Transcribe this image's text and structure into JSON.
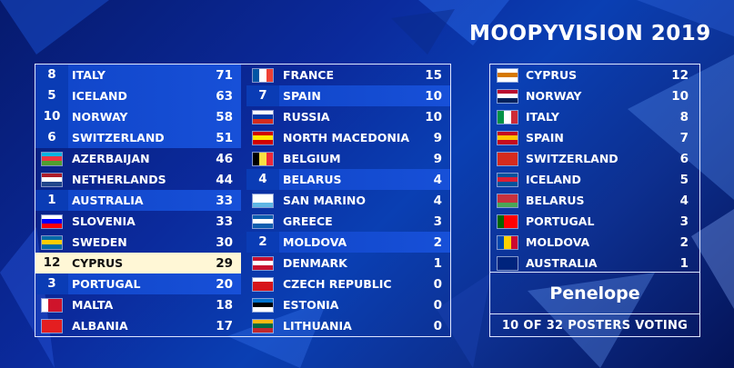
{
  "title": "MOOPYVISION 2019",
  "left_column": [
    {
      "badge": "8",
      "country": "ITALY",
      "points": "71",
      "style": "hl",
      "flag": [
        "#009246",
        "#ffffff",
        "#ce2b37"
      ],
      "flag_dir": "v"
    },
    {
      "badge": "5",
      "country": "ICELAND",
      "points": "63",
      "style": "hl",
      "flag": [
        "#02529c",
        "#ffffff",
        "#02529c"
      ],
      "flag_dir": "h"
    },
    {
      "badge": "10",
      "country": "NORWAY",
      "points": "58",
      "style": "hl",
      "flag": [
        "#ba0c2f",
        "#ffffff",
        "#00205b"
      ],
      "flag_dir": "h"
    },
    {
      "badge": "6",
      "country": "SWITZERLAND",
      "points": "51",
      "style": "hl",
      "flag": [
        "#d52b1e",
        "#d52b1e",
        "#d52b1e"
      ],
      "flag_dir": "h"
    },
    {
      "badge": "",
      "country": "AZERBAIJAN",
      "points": "46",
      "style": "",
      "flag": [
        "#00b5e2",
        "#ef3340",
        "#509e2f"
      ],
      "flag_dir": "h"
    },
    {
      "badge": "",
      "country": "NETHERLANDS",
      "points": "44",
      "style": "",
      "flag": [
        "#ae1c28",
        "#ffffff",
        "#21468b"
      ],
      "flag_dir": "h"
    },
    {
      "badge": "1",
      "country": "AUSTRALIA",
      "points": "33",
      "style": "hl",
      "flag": [
        "#00247d",
        "#00247d",
        "#00247d"
      ],
      "flag_dir": "h"
    },
    {
      "badge": "",
      "country": "SLOVENIA",
      "points": "33",
      "style": "",
      "flag": [
        "#ffffff",
        "#0000ff",
        "#ff0000"
      ],
      "flag_dir": "h"
    },
    {
      "badge": "",
      "country": "SWEDEN",
      "points": "30",
      "style": "",
      "flag": [
        "#006aa7",
        "#fecc00",
        "#006aa7"
      ],
      "flag_dir": "h"
    },
    {
      "badge": "12",
      "country": "CYPRUS",
      "points": "29",
      "style": "top",
      "flag": [
        "#ffffff",
        "#d57800",
        "#ffffff"
      ],
      "flag_dir": "h"
    },
    {
      "badge": "3",
      "country": "PORTUGAL",
      "points": "20",
      "style": "hl",
      "flag": [
        "#006600",
        "#ff0000",
        "#ff0000"
      ],
      "flag_dir": "v"
    },
    {
      "badge": "",
      "country": "MALTA",
      "points": "18",
      "style": "",
      "flag": [
        "#ffffff",
        "#cf142b",
        "#cf142b"
      ],
      "flag_dir": "v"
    },
    {
      "badge": "",
      "country": "ALBANIA",
      "points": "17",
      "style": "",
      "flag": [
        "#e41e20",
        "#e41e20",
        "#e41e20"
      ],
      "flag_dir": "h"
    }
  ],
  "middle_column": [
    {
      "badge": "",
      "country": "FRANCE",
      "points": "15",
      "style": "",
      "flag": [
        "#0055a4",
        "#ffffff",
        "#ef4135"
      ],
      "flag_dir": "v"
    },
    {
      "badge": "7",
      "country": "SPAIN",
      "points": "10",
      "style": "hl",
      "flag": [
        "#c60b1e",
        "#ffc400",
        "#c60b1e"
      ],
      "flag_dir": "h"
    },
    {
      "badge": "",
      "country": "RUSSIA",
      "points": "10",
      "style": "",
      "flag": [
        "#ffffff",
        "#0039a6",
        "#d52b1e"
      ],
      "flag_dir": "h"
    },
    {
      "badge": "",
      "country": "NORTH MACEDONIA",
      "points": "9",
      "style": "",
      "flag": [
        "#d20000",
        "#ffe600",
        "#d20000"
      ],
      "flag_dir": "h"
    },
    {
      "badge": "",
      "country": "BELGIUM",
      "points": "9",
      "style": "",
      "flag": [
        "#000000",
        "#fae042",
        "#ed2939"
      ],
      "flag_dir": "v"
    },
    {
      "badge": "4",
      "country": "BELARUS",
      "points": "4",
      "style": "hl",
      "flag": [
        "#c8313e",
        "#c8313e",
        "#4aa657"
      ],
      "flag_dir": "h"
    },
    {
      "badge": "",
      "country": "SAN MARINO",
      "points": "4",
      "style": "",
      "flag": [
        "#ffffff",
        "#ffffff",
        "#5eb6e4"
      ],
      "flag_dir": "h"
    },
    {
      "badge": "",
      "country": "GREECE",
      "points": "3",
      "style": "",
      "flag": [
        "#0d5eaf",
        "#ffffff",
        "#0d5eaf"
      ],
      "flag_dir": "h"
    },
    {
      "badge": "2",
      "country": "MOLDOVA",
      "points": "2",
      "style": "hl",
      "flag": [
        "#0046ae",
        "#ffd200",
        "#cc092f"
      ],
      "flag_dir": "v"
    },
    {
      "badge": "",
      "country": "DENMARK",
      "points": "1",
      "style": "",
      "flag": [
        "#c8102e",
        "#ffffff",
        "#c8102e"
      ],
      "flag_dir": "h"
    },
    {
      "badge": "",
      "country": "CZECH REPUBLIC",
      "points": "0",
      "style": "",
      "flag": [
        "#ffffff",
        "#d7141a",
        "#d7141a"
      ],
      "flag_dir": "h"
    },
    {
      "badge": "",
      "country": "ESTONIA",
      "points": "0",
      "style": "",
      "flag": [
        "#0072ce",
        "#000000",
        "#ffffff"
      ],
      "flag_dir": "h"
    },
    {
      "badge": "",
      "country": "LITHUANIA",
      "points": "0",
      "style": "",
      "flag": [
        "#fdb913",
        "#006a44",
        "#c1272d"
      ],
      "flag_dir": "h"
    }
  ],
  "right_column": [
    {
      "country": "CYPRUS",
      "points": "12",
      "flag": [
        "#ffffff",
        "#d57800",
        "#ffffff"
      ],
      "flag_dir": "h"
    },
    {
      "country": "NORWAY",
      "points": "10",
      "flag": [
        "#ba0c2f",
        "#ffffff",
        "#00205b"
      ],
      "flag_dir": "h"
    },
    {
      "country": "ITALY",
      "points": "8",
      "flag": [
        "#009246",
        "#ffffff",
        "#ce2b37"
      ],
      "flag_dir": "v"
    },
    {
      "country": "SPAIN",
      "points": "7",
      "flag": [
        "#c60b1e",
        "#ffc400",
        "#c60b1e"
      ],
      "flag_dir": "h"
    },
    {
      "country": "SWITZERLAND",
      "points": "6",
      "flag": [
        "#d52b1e",
        "#d52b1e",
        "#d52b1e"
      ],
      "flag_dir": "h"
    },
    {
      "country": "ICELAND",
      "points": "5",
      "flag": [
        "#02529c",
        "#dc1e35",
        "#02529c"
      ],
      "flag_dir": "h"
    },
    {
      "country": "BELARUS",
      "points": "4",
      "flag": [
        "#c8313e",
        "#c8313e",
        "#4aa657"
      ],
      "flag_dir": "h"
    },
    {
      "country": "PORTUGAL",
      "points": "3",
      "flag": [
        "#006600",
        "#ff0000",
        "#ff0000"
      ],
      "flag_dir": "v"
    },
    {
      "country": "MOLDOVA",
      "points": "2",
      "flag": [
        "#0046ae",
        "#ffd200",
        "#cc092f"
      ],
      "flag_dir": "v"
    },
    {
      "country": "AUSTRALIA",
      "points": "1",
      "flag": [
        "#00247d",
        "#00247d",
        "#00247d"
      ],
      "flag_dir": "h"
    }
  ],
  "voter": "Penelope",
  "voting_status": "10 OF 32 POSTERS VOTING"
}
